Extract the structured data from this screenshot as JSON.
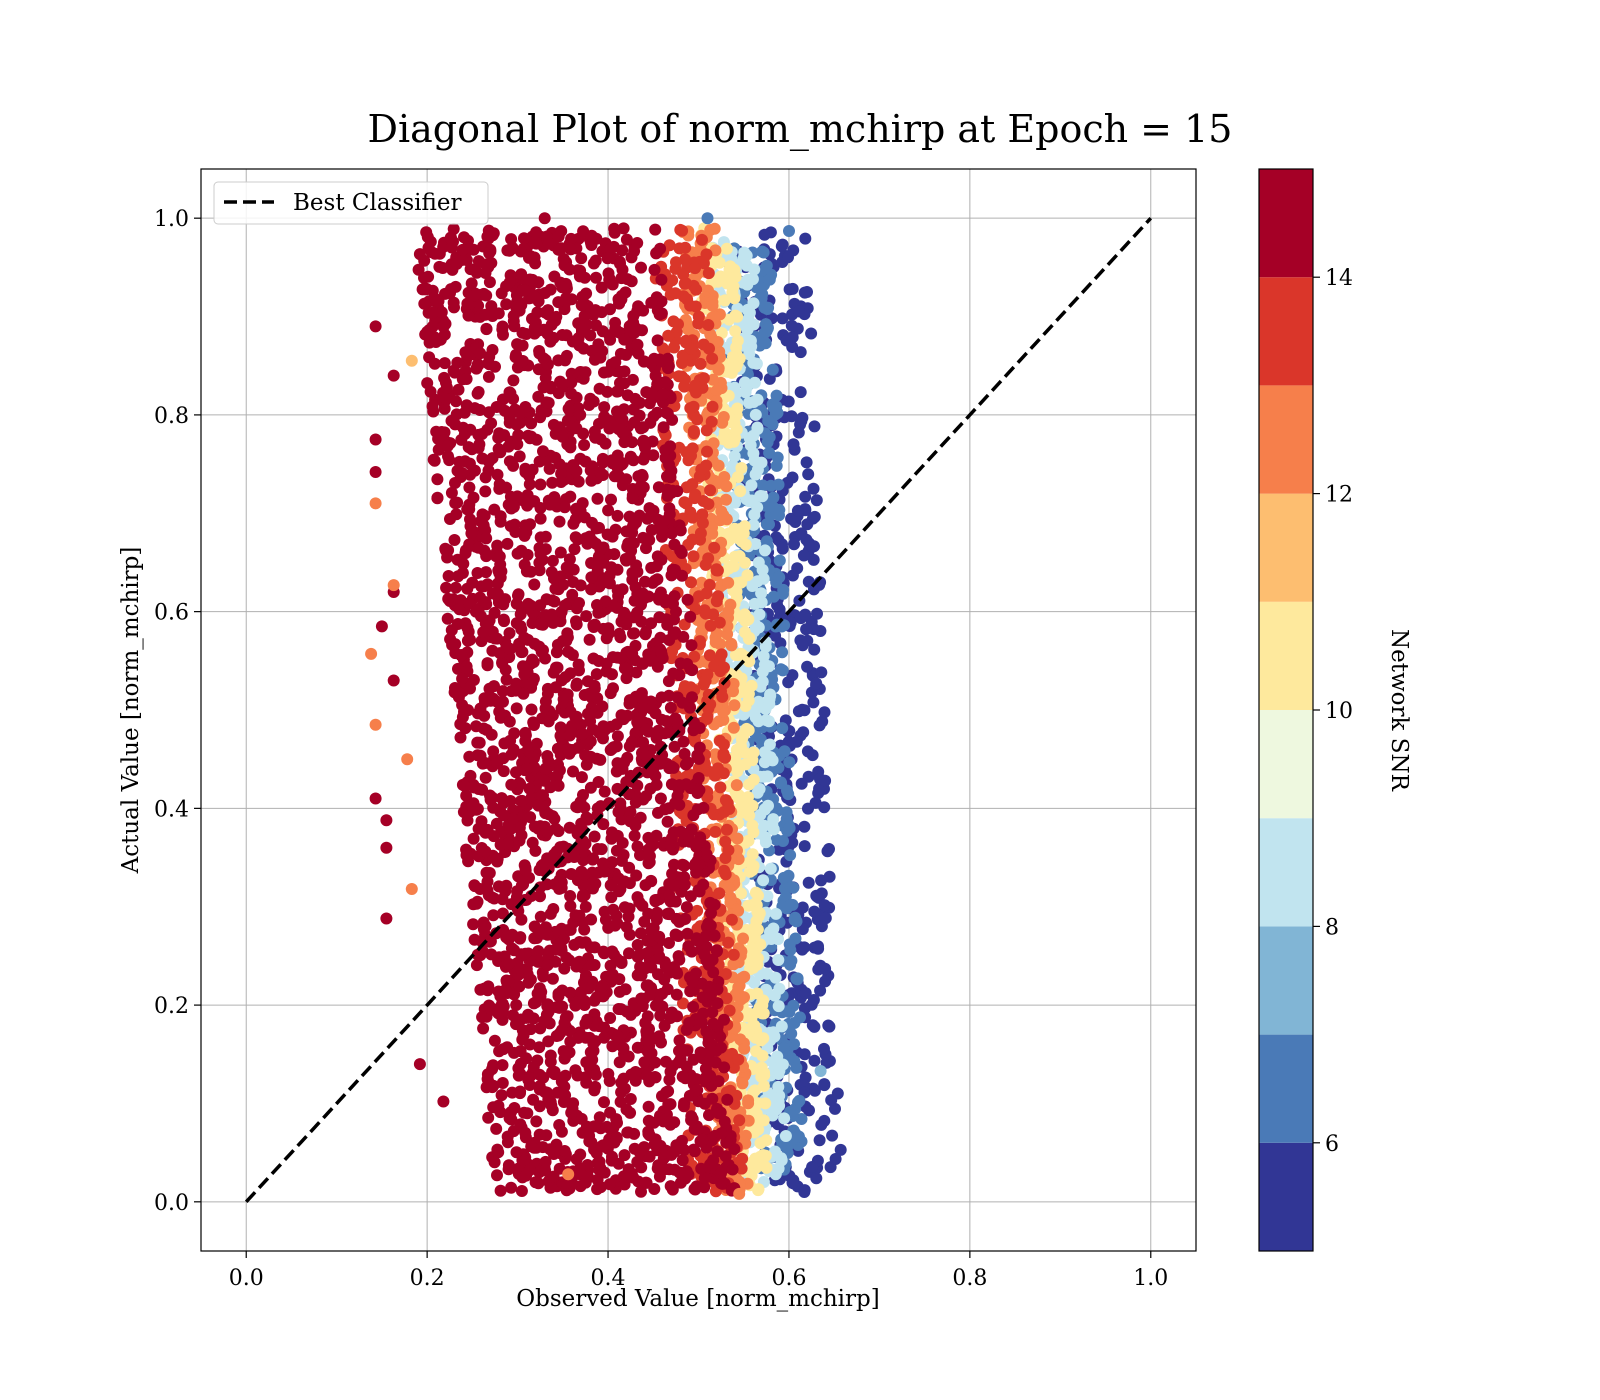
{
  "chart_data": {
    "type": "scatter",
    "title": "Diagonal Plot of norm_mchirp at Epoch = 15",
    "xlabel": "Observed Value [norm_mchirp]",
    "ylabel": "Actual Value [norm_mchirp]",
    "xlim": [
      -0.05,
      1.05
    ],
    "ylim": [
      -0.05,
      1.05
    ],
    "xticks": [
      "0.0",
      "0.2",
      "0.4",
      "0.6",
      "0.8",
      "1.0"
    ],
    "yticks": [
      "0.0",
      "0.2",
      "0.4",
      "0.6",
      "0.8",
      "1.0"
    ],
    "grid": true,
    "legend": {
      "placement": "top-left",
      "entries": [
        "Best Classifier"
      ]
    },
    "reference_line": {
      "name": "Best Classifier",
      "style": "dashed",
      "color": "#000000",
      "x": [
        0,
        1
      ],
      "y": [
        0,
        1
      ]
    },
    "colorbar": {
      "label": "Network SNR",
      "range": [
        5,
        15
      ],
      "ticks": [
        "6",
        "8",
        "10",
        "12",
        "14"
      ],
      "bins": [
        {
          "from": 5,
          "to": 6,
          "color": "#313695"
        },
        {
          "from": 6,
          "to": 7,
          "color": "#4a7ab7"
        },
        {
          "from": 7,
          "to": 8,
          "color": "#81b5d5"
        },
        {
          "from": 8,
          "to": 9,
          "color": "#c1e4ef"
        },
        {
          "from": 9,
          "to": 10,
          "color": "#eef8df"
        },
        {
          "from": 10,
          "to": 11,
          "color": "#fee99d"
        },
        {
          "from": 11,
          "to": 12,
          "color": "#fdbe70"
        },
        {
          "from": 12,
          "to": 13,
          "color": "#f67f4b"
        },
        {
          "from": 13,
          "to": 14,
          "color": "#da362a"
        },
        {
          "from": 14,
          "to": 15,
          "color": "#a50026"
        }
      ]
    },
    "point_clusters": [
      {
        "snr": 15,
        "x_range": [
          0.23,
          0.5
        ],
        "y_range": [
          0.01,
          0.99
        ],
        "description": "dense core"
      },
      {
        "snr": 13.5,
        "x_range": [
          0.47,
          0.53
        ],
        "y_range": [
          0.01,
          0.99
        ]
      },
      {
        "snr": 12.5,
        "x_range": [
          0.5,
          0.54
        ],
        "y_range": [
          0.01,
          0.99
        ]
      },
      {
        "snr": 10.5,
        "x_range": [
          0.52,
          0.56
        ],
        "y_range": [
          0.01,
          0.99
        ]
      },
      {
        "snr": 8.5,
        "x_range": [
          0.53,
          0.58
        ],
        "y_range": [
          0.02,
          0.98
        ]
      },
      {
        "snr": 6.5,
        "x_range": [
          0.55,
          0.6
        ],
        "y_range": [
          0.03,
          0.97
        ]
      },
      {
        "snr": 5.5,
        "x_range": [
          0.56,
          0.64
        ],
        "y_range": [
          0.01,
          0.99
        ]
      }
    ],
    "outliers": [
      {
        "x": 0.143,
        "y": 0.89,
        "snr": 15
      },
      {
        "x": 0.163,
        "y": 0.84,
        "snr": 15
      },
      {
        "x": 0.143,
        "y": 0.775,
        "snr": 15
      },
      {
        "x": 0.143,
        "y": 0.742,
        "snr": 15
      },
      {
        "x": 0.143,
        "y": 0.71,
        "snr": 12.5
      },
      {
        "x": 0.163,
        "y": 0.62,
        "snr": 15
      },
      {
        "x": 0.163,
        "y": 0.627,
        "snr": 12.5
      },
      {
        "x": 0.15,
        "y": 0.585,
        "snr": 15
      },
      {
        "x": 0.138,
        "y": 0.557,
        "snr": 12.5
      },
      {
        "x": 0.163,
        "y": 0.53,
        "snr": 15
      },
      {
        "x": 0.143,
        "y": 0.485,
        "snr": 12.5
      },
      {
        "x": 0.143,
        "y": 0.41,
        "snr": 15
      },
      {
        "x": 0.155,
        "y": 0.388,
        "snr": 15
      },
      {
        "x": 0.155,
        "y": 0.36,
        "snr": 15
      },
      {
        "x": 0.155,
        "y": 0.288,
        "snr": 15
      },
      {
        "x": 0.183,
        "y": 0.318,
        "snr": 12.5
      },
      {
        "x": 0.192,
        "y": 0.14,
        "snr": 15
      },
      {
        "x": 0.218,
        "y": 0.102,
        "snr": 15
      },
      {
        "x": 0.178,
        "y": 0.45,
        "snr": 12.5
      },
      {
        "x": 0.183,
        "y": 0.855,
        "snr": 11.5
      },
      {
        "x": 0.6,
        "y": 0.987,
        "snr": 6.5
      },
      {
        "x": 0.617,
        "y": 0.01,
        "snr": 5.5
      },
      {
        "x": 0.64,
        "y": 0.428,
        "snr": 5.5
      },
      {
        "x": 0.64,
        "y": 0.237,
        "snr": 5.5
      },
      {
        "x": 0.635,
        "y": 0.133,
        "snr": 7.5
      },
      {
        "x": 0.62,
        "y": 0.925,
        "snr": 5.5
      },
      {
        "x": 0.618,
        "y": 0.597,
        "snr": 5.5
      },
      {
        "x": 0.33,
        "y": 1.0,
        "snr": 15
      },
      {
        "x": 0.51,
        "y": 1.0,
        "snr": 6.5
      },
      {
        "x": 0.545,
        "y": 0.008,
        "snr": 12.5
      },
      {
        "x": 0.356,
        "y": 0.028,
        "snr": 12.5
      }
    ]
  }
}
